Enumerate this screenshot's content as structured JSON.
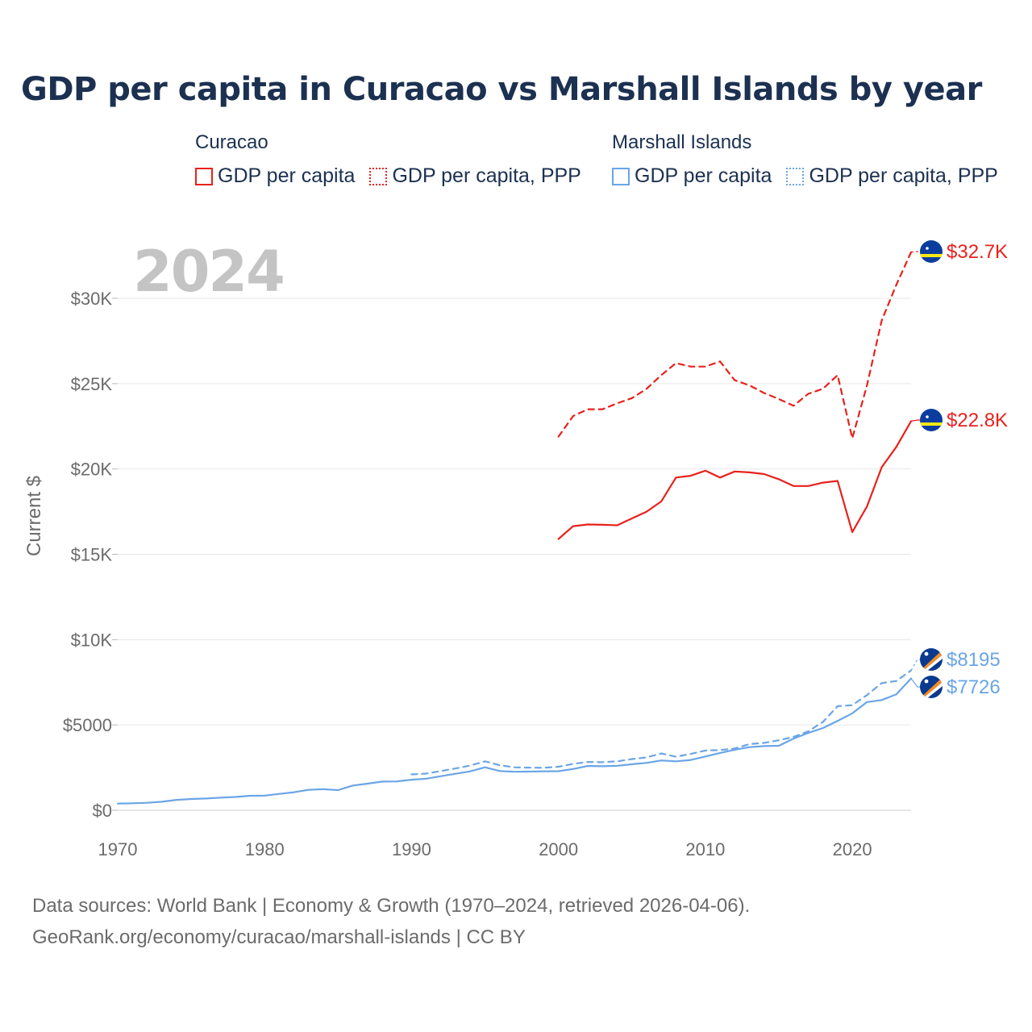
{
  "title": "GDP per capita in Curacao vs Marshall Islands by year",
  "legend": {
    "curacao": {
      "label": "Curacao",
      "color": "#e8211d",
      "items": [
        "GDP per capita",
        "GDP per capita, PPP"
      ]
    },
    "marshall": {
      "label": "Marshall Islands",
      "color": "#6aa5e6",
      "items": [
        "GDP per capita",
        "GDP per capita, PPP"
      ]
    }
  },
  "watermark": "2024",
  "footer": {
    "line1": "Data sources: World Bank | Economy & Growth (1970–2024, retrieved 2026-04-06).",
    "line2": "GeoRank.org/economy/curacao/marshall-islands | CC BY"
  },
  "chart_data": {
    "type": "line",
    "ylabel": "Current $",
    "xlabel": "",
    "xlim": [
      1970,
      2024
    ],
    "ylim": [
      0,
      32700
    ],
    "x_ticks": [
      1970,
      1980,
      1990,
      2000,
      2010,
      2020
    ],
    "x_tick_labels": [
      "1970",
      "1980",
      "1990",
      "2000",
      "2010",
      "2020"
    ],
    "y_ticks": [
      0,
      5000,
      10000,
      15000,
      20000,
      25000,
      30000
    ],
    "y_tick_labels": [
      "$0",
      "$5000",
      "$10K",
      "$15K",
      "$20K",
      "$25K",
      "$30K"
    ],
    "grid": true,
    "series": [
      {
        "name": "Curacao GDP per capita",
        "color": "#e8211d",
        "dash": "solid",
        "end_label": "$22.8K",
        "x": [
          2000,
          2001,
          2002,
          2003,
          2004,
          2005,
          2006,
          2007,
          2008,
          2009,
          2010,
          2011,
          2012,
          2013,
          2014,
          2015,
          2016,
          2017,
          2018,
          2019,
          2020,
          2021,
          2022,
          2023,
          2024
        ],
        "values": [
          15900,
          16650,
          16750,
          16730,
          16700,
          17100,
          17500,
          18100,
          19500,
          19600,
          19900,
          19500,
          19850,
          19800,
          19700,
          19400,
          19000,
          19000,
          19200,
          19300,
          16300,
          17800,
          20100,
          21300,
          22800
        ]
      },
      {
        "name": "Curacao GDP per capita, PPP",
        "color": "#e8211d",
        "dash": "dashed",
        "end_label": "$32.7K",
        "x": [
          2000,
          2001,
          2002,
          2003,
          2004,
          2005,
          2006,
          2007,
          2008,
          2009,
          2010,
          2011,
          2012,
          2013,
          2014,
          2015,
          2016,
          2017,
          2018,
          2019,
          2020,
          2021,
          2022,
          2023,
          2024
        ],
        "values": [
          21900,
          23100,
          23500,
          23500,
          23850,
          24150,
          24700,
          25500,
          26200,
          26000,
          26000,
          26300,
          25200,
          24900,
          24450,
          24100,
          23700,
          24400,
          24700,
          25500,
          21800,
          24900,
          28700,
          30800,
          32700
        ]
      },
      {
        "name": "Marshall Islands GDP per capita",
        "color": "#6aa5e6",
        "dash": "solid",
        "end_label": "$7726",
        "x": [
          1970,
          1971,
          1972,
          1973,
          1974,
          1975,
          1976,
          1977,
          1978,
          1979,
          1980,
          1981,
          1982,
          1983,
          1984,
          1985,
          1986,
          1987,
          1988,
          1989,
          1990,
          1991,
          1992,
          1993,
          1994,
          1995,
          1996,
          1997,
          1998,
          1999,
          2000,
          2001,
          2002,
          2003,
          2004,
          2005,
          2006,
          2007,
          2008,
          2009,
          2010,
          2011,
          2012,
          2013,
          2014,
          2015,
          2016,
          2017,
          2018,
          2019,
          2020,
          2021,
          2022,
          2023,
          2024
        ],
        "values": [
          390,
          410,
          440,
          500,
          610,
          660,
          690,
          740,
          780,
          850,
          860,
          960,
          1060,
          1200,
          1240,
          1180,
          1450,
          1560,
          1680,
          1690,
          1790,
          1850,
          2000,
          2140,
          2280,
          2520,
          2300,
          2260,
          2270,
          2280,
          2290,
          2420,
          2600,
          2580,
          2610,
          2700,
          2780,
          2920,
          2870,
          2950,
          3150,
          3360,
          3550,
          3700,
          3760,
          3780,
          4200,
          4530,
          4820,
          5240,
          5680,
          6340,
          6460,
          6800,
          7726
        ]
      },
      {
        "name": "Marshall Islands GDP per capita, PPP",
        "color": "#6aa5e6",
        "dash": "dashed",
        "end_label": "$8195",
        "x": [
          1990,
          1991,
          1992,
          1993,
          1994,
          1995,
          1996,
          1997,
          1998,
          1999,
          2000,
          2001,
          2002,
          2003,
          2004,
          2005,
          2006,
          2007,
          2008,
          2009,
          2010,
          2011,
          2012,
          2013,
          2014,
          2015,
          2016,
          2017,
          2018,
          2019,
          2020,
          2021,
          2022,
          2023,
          2024
        ],
        "values": [
          2100,
          2150,
          2300,
          2450,
          2620,
          2870,
          2640,
          2520,
          2500,
          2490,
          2550,
          2720,
          2830,
          2820,
          2870,
          3000,
          3100,
          3330,
          3140,
          3300,
          3500,
          3530,
          3620,
          3880,
          3950,
          4100,
          4300,
          4620,
          5180,
          6100,
          6160,
          6750,
          7450,
          7580,
          8195
        ]
      }
    ]
  }
}
